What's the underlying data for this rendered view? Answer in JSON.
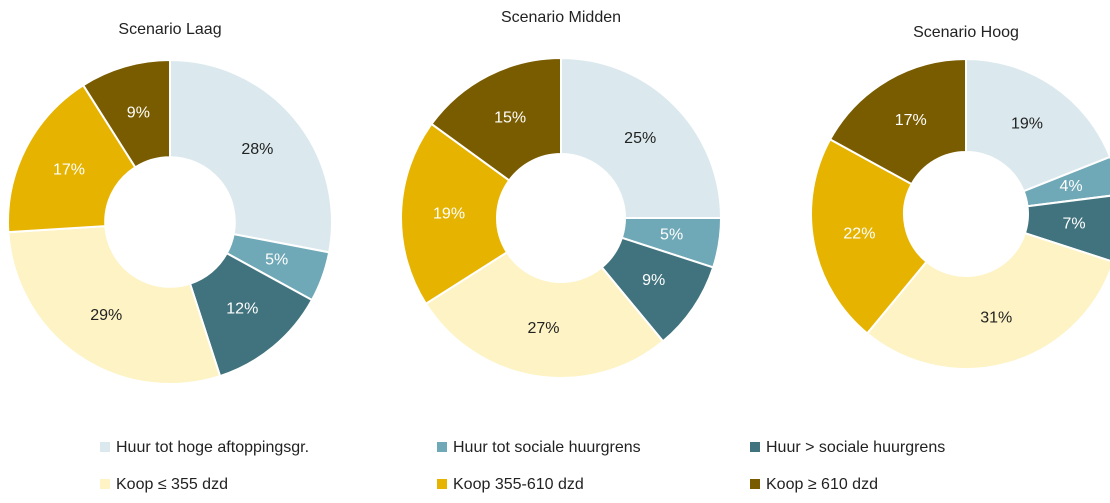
{
  "legend": {
    "labels": [
      "Huur tot hoge aftoppingsgr.",
      "Huur tot sociale huurgrens",
      "Huur > sociale huurgrens",
      "Koop ≤ 355 dzd",
      "Koop 355-610 dzd",
      "Koop ≥ 610 dzd"
    ],
    "colors": [
      "#dbe9ee",
      "#6fa8b6",
      "#41737e",
      "#fdf3c4",
      "#e6b400",
      "#7a5c00"
    ]
  },
  "chart_data": [
    {
      "type": "donut",
      "title": "Scenario Laag",
      "values": [
        28,
        5,
        12,
        29,
        17,
        9
      ],
      "value_labels": [
        "28%",
        "5%",
        "12%",
        "29%",
        "17%",
        "9%"
      ]
    },
    {
      "type": "donut",
      "title": "Scenario Midden",
      "values": [
        25,
        5,
        9,
        27,
        19,
        15
      ],
      "value_labels": [
        "25%",
        "5%",
        "9%",
        "27%",
        "19%",
        "15%"
      ]
    },
    {
      "type": "donut",
      "title": "Scenario Hoog",
      "values": [
        19,
        4,
        7,
        31,
        22,
        17
      ],
      "value_labels": [
        "19%",
        "4%",
        "7%",
        "31%",
        "22%",
        "17%"
      ]
    }
  ]
}
